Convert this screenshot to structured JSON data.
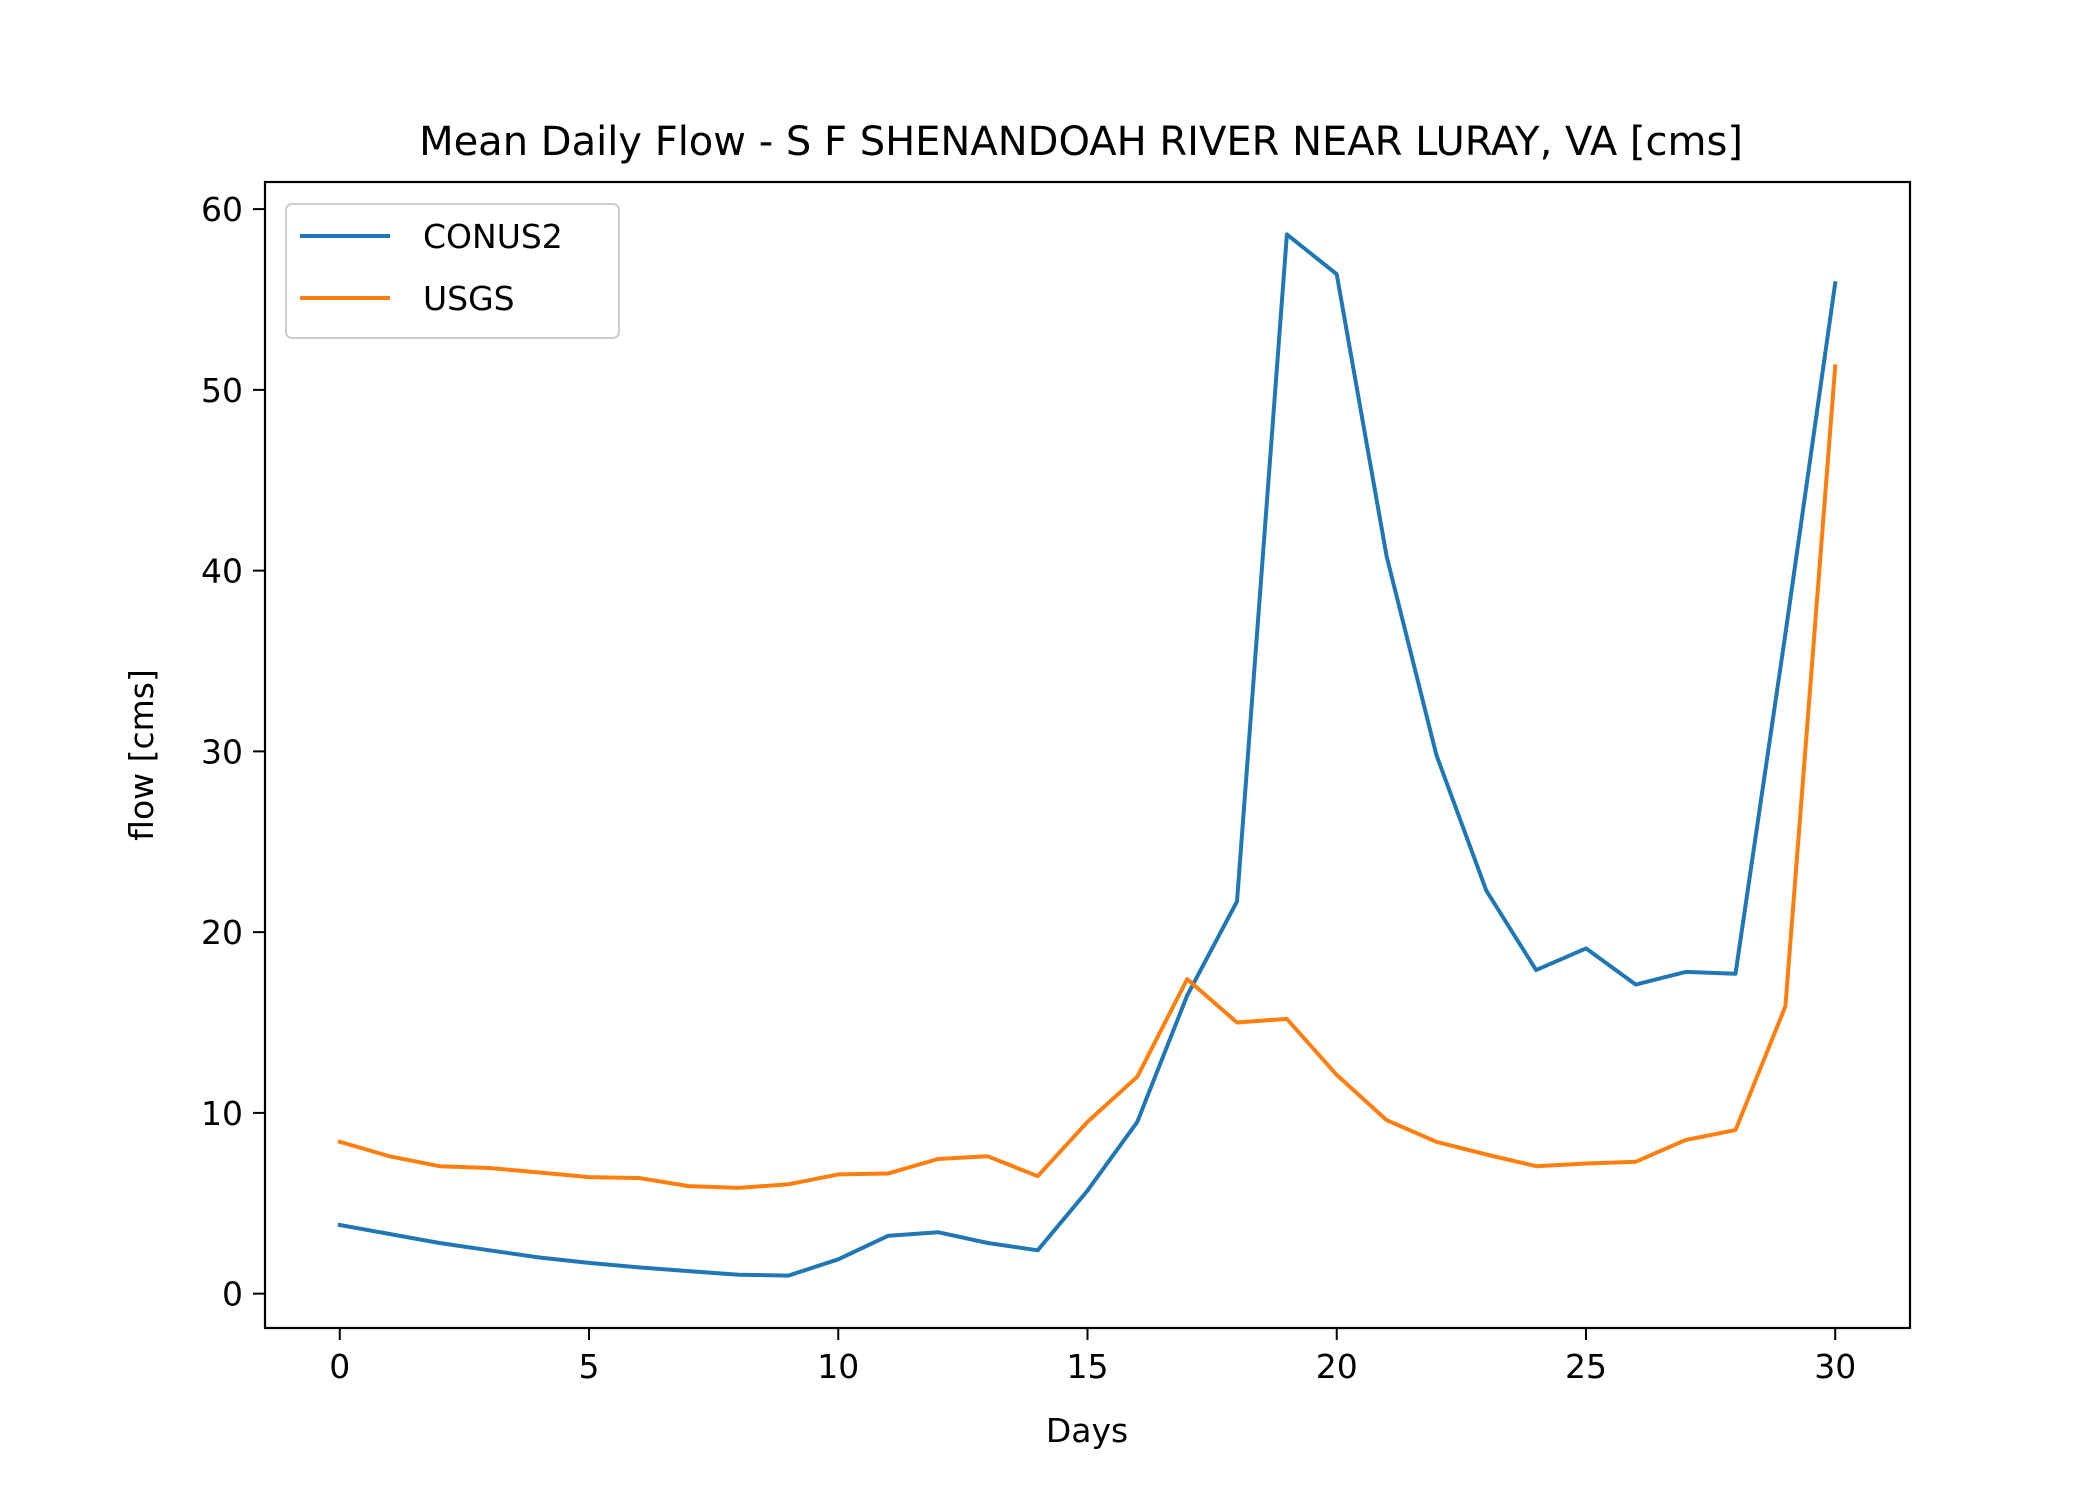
{
  "chart_data": {
    "type": "line",
    "title": "Mean Daily Flow - S F SHENANDOAH RIVER NEAR LURAY, VA [cms]",
    "xlabel": "Days",
    "ylabel": "flow [cms]",
    "xlim": [
      -1.5,
      31.5
    ],
    "ylim": [
      -1.9,
      61.5
    ],
    "xticks": [
      0,
      5,
      10,
      15,
      20,
      25,
      30
    ],
    "xtick_labels": [
      "0",
      "5",
      "10",
      "15",
      "20",
      "25",
      "30"
    ],
    "yticks": [
      0,
      10,
      20,
      30,
      40,
      50,
      60
    ],
    "ytick_labels": [
      "0",
      "10",
      "20",
      "30",
      "40",
      "50",
      "60"
    ],
    "grid": false,
    "legend_position": "upper-left",
    "x": [
      0,
      1,
      2,
      3,
      4,
      5,
      6,
      7,
      8,
      9,
      10,
      11,
      12,
      13,
      14,
      15,
      16,
      17,
      18,
      19,
      20,
      21,
      22,
      23,
      24,
      25,
      26,
      27,
      28,
      29,
      30
    ],
    "series": [
      {
        "name": "CONUS2",
        "color": "#1f77b4",
        "values": [
          3.8,
          3.3,
          2.8,
          2.4,
          2.0,
          1.7,
          1.45,
          1.25,
          1.05,
          1.0,
          1.9,
          3.2,
          3.4,
          2.8,
          2.4,
          5.7,
          9.5,
          16.5,
          21.7,
          58.6,
          56.4,
          40.8,
          29.8,
          22.3,
          17.9,
          19.1,
          17.1,
          17.8,
          17.7,
          36.5,
          55.9
        ]
      },
      {
        "name": "USGS",
        "color": "#ff7f0e",
        "values": [
          8.4,
          7.6,
          7.05,
          6.95,
          6.7,
          6.45,
          6.4,
          5.95,
          5.85,
          6.05,
          6.6,
          6.65,
          7.45,
          7.6,
          6.5,
          9.5,
          12.0,
          17.4,
          15.0,
          15.2,
          12.1,
          9.6,
          8.4,
          7.7,
          7.05,
          7.2,
          7.3,
          8.5,
          9.05,
          15.9,
          51.3
        ]
      }
    ]
  }
}
